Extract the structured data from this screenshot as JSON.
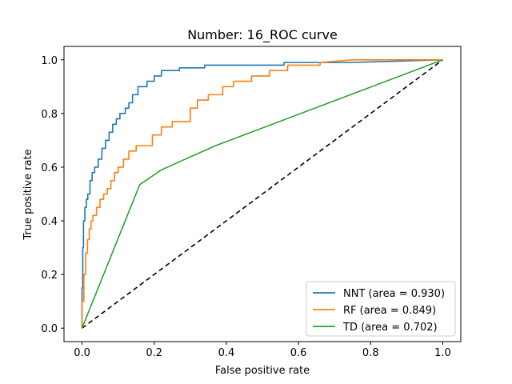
{
  "chart_data": {
    "type": "line",
    "title": "Number: 16_ROC curve",
    "xlabel": "False positive rate",
    "ylabel": "True positive rate",
    "xlim": [
      -0.05,
      1.05
    ],
    "ylim": [
      -0.05,
      1.05
    ],
    "xticks": [
      0.0,
      0.2,
      0.4,
      0.6,
      0.8,
      1.0
    ],
    "yticks": [
      0.0,
      0.2,
      0.4,
      0.6,
      0.8,
      1.0
    ],
    "tick_labels_x": [
      "0.0",
      "0.2",
      "0.4",
      "0.6",
      "0.8",
      "1.0"
    ],
    "tick_labels_y": [
      "0.0",
      "0.2",
      "0.4",
      "0.6",
      "0.8",
      "1.0"
    ],
    "grid": false,
    "legend_position": "lower right",
    "series": [
      {
        "name": "NNT (area = 0.930)",
        "color": "#1f77b4",
        "x": [
          0.0,
          0.0,
          0.002,
          0.002,
          0.004,
          0.004,
          0.008,
          0.008,
          0.012,
          0.012,
          0.016,
          0.016,
          0.022,
          0.022,
          0.028,
          0.028,
          0.035,
          0.035,
          0.045,
          0.045,
          0.055,
          0.055,
          0.065,
          0.065,
          0.075,
          0.075,
          0.085,
          0.085,
          0.095,
          0.095,
          0.105,
          0.105,
          0.12,
          0.12,
          0.13,
          0.13,
          0.14,
          0.14,
          0.155,
          0.155,
          0.18,
          0.18,
          0.2,
          0.2,
          0.22,
          0.22,
          0.27,
          0.27,
          0.34,
          0.34,
          0.56,
          0.56,
          0.74,
          1.0
        ],
        "y": [
          0.0,
          0.15,
          0.15,
          0.3,
          0.3,
          0.4,
          0.4,
          0.45,
          0.45,
          0.48,
          0.48,
          0.5,
          0.5,
          0.55,
          0.55,
          0.58,
          0.58,
          0.6,
          0.6,
          0.63,
          0.63,
          0.67,
          0.67,
          0.7,
          0.7,
          0.73,
          0.73,
          0.76,
          0.76,
          0.78,
          0.78,
          0.8,
          0.8,
          0.82,
          0.82,
          0.84,
          0.84,
          0.87,
          0.87,
          0.9,
          0.9,
          0.92,
          0.92,
          0.94,
          0.94,
          0.96,
          0.96,
          0.97,
          0.97,
          0.98,
          0.98,
          0.99,
          0.99,
          1.0
        ]
      },
      {
        "name": "RF (area = 0.849)",
        "color": "#ff7f0e",
        "x": [
          0.0,
          0.0,
          0.005,
          0.005,
          0.01,
          0.01,
          0.015,
          0.015,
          0.02,
          0.02,
          0.025,
          0.025,
          0.03,
          0.03,
          0.04,
          0.04,
          0.05,
          0.05,
          0.06,
          0.06,
          0.07,
          0.07,
          0.08,
          0.08,
          0.09,
          0.09,
          0.1,
          0.1,
          0.115,
          0.115,
          0.13,
          0.13,
          0.15,
          0.15,
          0.195,
          0.195,
          0.22,
          0.22,
          0.25,
          0.25,
          0.3,
          0.3,
          0.32,
          0.32,
          0.35,
          0.35,
          0.39,
          0.39,
          0.42,
          0.42,
          0.47,
          0.47,
          0.52,
          0.52,
          0.57,
          0.57,
          0.66,
          0.66,
          0.75,
          1.0
        ],
        "y": [
          0.0,
          0.1,
          0.1,
          0.2,
          0.2,
          0.28,
          0.28,
          0.33,
          0.33,
          0.37,
          0.37,
          0.4,
          0.4,
          0.42,
          0.42,
          0.45,
          0.45,
          0.48,
          0.48,
          0.5,
          0.5,
          0.52,
          0.52,
          0.55,
          0.55,
          0.58,
          0.58,
          0.6,
          0.6,
          0.63,
          0.63,
          0.66,
          0.66,
          0.68,
          0.68,
          0.72,
          0.72,
          0.75,
          0.75,
          0.77,
          0.77,
          0.82,
          0.82,
          0.85,
          0.85,
          0.87,
          0.87,
          0.9,
          0.9,
          0.92,
          0.92,
          0.94,
          0.94,
          0.96,
          0.96,
          0.98,
          0.98,
          0.99,
          1.0,
          1.0
        ]
      },
      {
        "name": "TD (area = 0.702)",
        "color": "#2ca02c",
        "x": [
          0.0,
          0.16,
          0.22,
          0.37,
          1.0
        ],
        "y": [
          0.0,
          0.535,
          0.59,
          0.68,
          1.0
        ]
      }
    ],
    "reference_line": {
      "x": [
        0.0,
        1.0
      ],
      "y": [
        0.0,
        1.0
      ],
      "color": "#000000",
      "style": "dashed"
    }
  }
}
